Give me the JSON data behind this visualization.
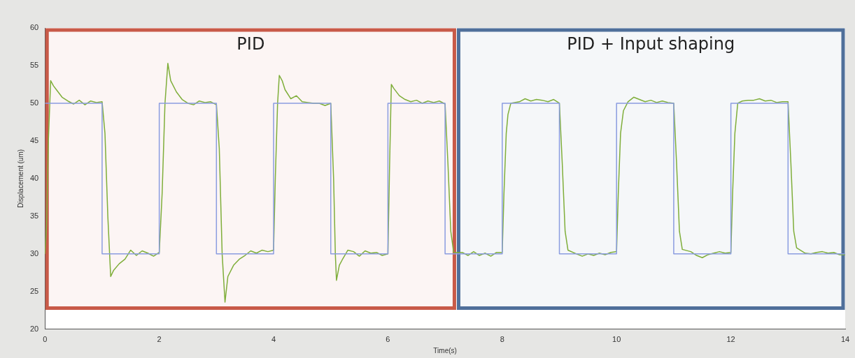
{
  "chart_data": {
    "type": "line",
    "xlabel": "Time(s)",
    "ylabel": "Displacement (um)",
    "xlim": [
      0,
      14
    ],
    "xticks": [
      0,
      2,
      4,
      6,
      8,
      10,
      12,
      14
    ],
    "ylim": [
      20,
      60
    ],
    "yticks": [
      20,
      25,
      30,
      35,
      40,
      45,
      50,
      55,
      60
    ],
    "grid": false,
    "marker": "none",
    "line_style": "solid",
    "series": [
      {
        "type": "step",
        "color": "#8a9ce0",
        "x": [
          0,
          1,
          2,
          3,
          4,
          5,
          6,
          7,
          8,
          9,
          10,
          11,
          12,
          13,
          14
        ],
        "values": [
          50,
          30,
          50,
          30,
          50,
          30,
          50,
          30,
          50,
          30,
          50,
          30,
          50,
          30,
          30
        ]
      },
      {
        "color": "#7fae3a",
        "x": [
          0,
          0.03,
          0.06,
          0.1,
          0.15,
          0.2,
          0.3,
          0.4,
          0.5,
          0.6,
          0.7,
          0.8,
          0.9,
          1.0,
          1.05,
          1.1,
          1.15,
          1.2,
          1.3,
          1.4,
          1.5,
          1.6,
          1.7,
          1.8,
          1.9,
          2.0,
          2.05,
          2.1,
          2.15,
          2.2,
          2.3,
          2.4,
          2.5,
          2.6,
          2.7,
          2.8,
          2.9,
          3.0,
          3.05,
          3.1,
          3.15,
          3.2,
          3.3,
          3.4,
          3.5,
          3.6,
          3.7,
          3.8,
          3.9,
          4.0,
          4.03,
          4.07,
          4.1,
          4.15,
          4.2,
          4.3,
          4.4,
          4.5,
          4.6,
          4.7,
          4.8,
          4.9,
          5.0,
          5.05,
          5.08,
          5.1,
          5.15,
          5.2,
          5.3,
          5.4,
          5.5,
          5.6,
          5.7,
          5.8,
          5.9,
          6.0,
          6.03,
          6.06,
          6.1,
          6.2,
          6.3,
          6.4,
          6.5,
          6.6,
          6.7,
          6.8,
          6.9,
          7.0,
          7.05,
          7.1,
          7.15,
          7.3,
          7.4,
          7.5,
          7.6,
          7.7,
          7.8,
          7.9,
          8.0,
          8.03,
          8.07,
          8.1,
          8.15,
          8.3,
          8.4,
          8.5,
          8.6,
          8.7,
          8.8,
          8.9,
          9.0,
          9.05,
          9.1,
          9.15,
          9.3,
          9.4,
          9.5,
          9.6,
          9.7,
          9.8,
          9.9,
          10.0,
          10.03,
          10.07,
          10.12,
          10.2,
          10.3,
          10.4,
          10.5,
          10.6,
          10.7,
          10.8,
          10.9,
          11.0,
          11.05,
          11.1,
          11.15,
          11.3,
          11.4,
          11.5,
          11.6,
          11.7,
          11.8,
          11.9,
          12.0,
          12.03,
          12.07,
          12.12,
          12.2,
          12.3,
          12.4,
          12.5,
          12.6,
          12.7,
          12.8,
          12.9,
          13.0,
          13.05,
          13.1,
          13.15,
          13.3,
          13.4,
          13.5,
          13.6,
          13.7,
          13.8,
          13.9,
          14.0
        ],
        "values": [
          30,
          34,
          45,
          53,
          52.3,
          51.8,
          50.8,
          50.3,
          49.9,
          50.4,
          49.8,
          50.3,
          50.1,
          50.2,
          46,
          35,
          27,
          27.8,
          28.7,
          29.3,
          30.5,
          29.8,
          30.4,
          30.1,
          29.7,
          30.2,
          38,
          50,
          55.3,
          53,
          51.5,
          50.5,
          50,
          49.8,
          50.3,
          50.1,
          50.2,
          49.8,
          44,
          30,
          23.6,
          27,
          28.5,
          29.3,
          29.8,
          30.4,
          30.1,
          30.5,
          30.3,
          30.5,
          40,
          50,
          53.7,
          53,
          51.8,
          50.6,
          51,
          50.2,
          50.1,
          50,
          50,
          49.7,
          50,
          40,
          30,
          26.5,
          28.5,
          29.2,
          30.5,
          30.3,
          29.7,
          30.4,
          30.1,
          30.2,
          29.8,
          30,
          42,
          52.5,
          52,
          51,
          50.5,
          50.2,
          50.4,
          50,
          50.3,
          50.1,
          50.3,
          49.9,
          42,
          33,
          30.2,
          30.2,
          29.8,
          30.3,
          29.8,
          30.1,
          29.7,
          30.2,
          30.2,
          38,
          46,
          48.5,
          50,
          50.2,
          50.6,
          50.3,
          50.5,
          50.4,
          50.2,
          50.5,
          50,
          42,
          33,
          30.5,
          30,
          29.7,
          30,
          29.8,
          30.1,
          29.9,
          30.2,
          30.3,
          38,
          46,
          49,
          50.2,
          50.8,
          50.5,
          50.2,
          50.4,
          50.1,
          50.3,
          50.1,
          50,
          42,
          33,
          30.6,
          30.3,
          29.8,
          29.5,
          29.9,
          30.1,
          30.3,
          30.1,
          30.2,
          38,
          46,
          50,
          50.3,
          50.4,
          50.4,
          50.6,
          50.3,
          50.4,
          50.1,
          50.2,
          50.2,
          42,
          33,
          30.8,
          30.1,
          30,
          30.2,
          30.3,
          30.1,
          30.2,
          29.9,
          29.9
        ]
      }
    ],
    "bands": [
      {
        "axis": "x",
        "from": 0,
        "to": 7.2,
        "label": "PID",
        "color": "#c85a48"
      },
      {
        "axis": "x",
        "from": 7.2,
        "to": 14,
        "label": "PID + Input shaping",
        "color": "#4f6f9a"
      }
    ]
  }
}
